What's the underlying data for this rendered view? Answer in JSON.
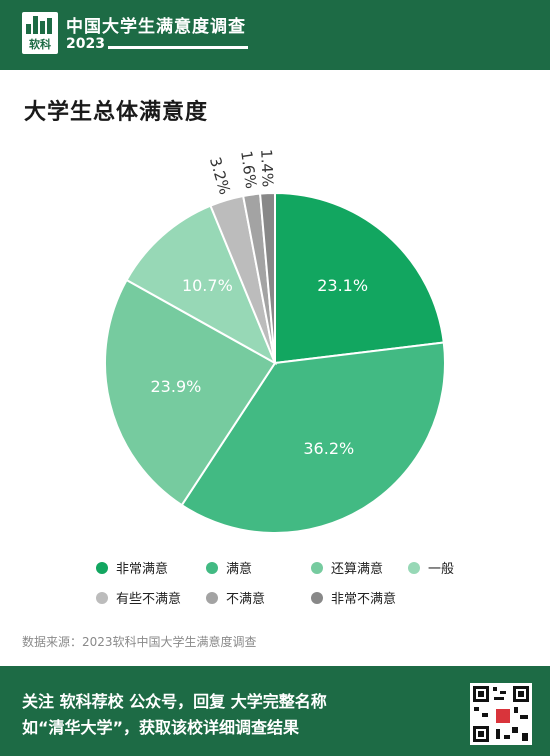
{
  "header": {
    "logo_text": "软科",
    "title": "中国大学生满意度调查",
    "year": "2023"
  },
  "card": {
    "title": "大学生总体满意度",
    "source": "数据来源：2023软科中国大学生满意度调查"
  },
  "footer": {
    "line1": "关注 软科荐校 公众号，回复 大学完整名称",
    "line2": "如“清华大学”，获取该校详细调查结果"
  },
  "chart_data": {
    "type": "pie",
    "title": "大学生总体满意度",
    "start_angle": "12 o'clock",
    "direction": "clockwise",
    "legend_position": "bottom",
    "slices": [
      {
        "label": "非常满意",
        "value": 23.1,
        "display": "23.1%",
        "color": "#12a660"
      },
      {
        "label": "满意",
        "value": 36.2,
        "display": "36.2%",
        "color": "#42ba83"
      },
      {
        "label": "还算满意",
        "value": 23.9,
        "display": "23.9%",
        "color": "#76cb9f"
      },
      {
        "label": "一般",
        "value": 10.7,
        "display": "10.7%",
        "color": "#97d8b6"
      },
      {
        "label": "有些不满意",
        "value": 3.2,
        "display": "3.2%",
        "color": "#bcbcbc"
      },
      {
        "label": "不满意",
        "value": 1.6,
        "display": "1.6%",
        "color": "#a3a3a3"
      },
      {
        "label": "非常不满意",
        "value": 1.4,
        "display": "1.4%",
        "color": "#888888"
      }
    ]
  }
}
